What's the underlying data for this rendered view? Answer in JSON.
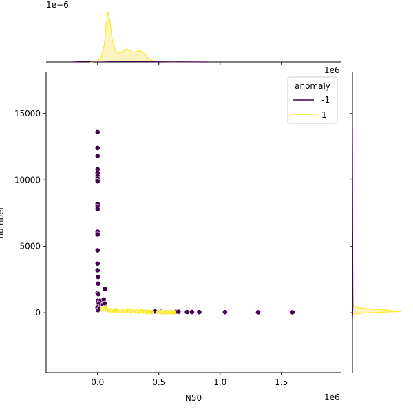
{
  "colors": {
    "anomaly_neg": "#440154",
    "anomaly_pos": "#fde725",
    "anomaly_pos_fill": "#fdf2b8",
    "axis": "#000000",
    "legend_border": "#cccccc"
  },
  "chart_data": {
    "type": "scatter",
    "subtype": "jointplot",
    "xlabel": "N50",
    "ylabel": "number",
    "xlim": [
      -420000,
      1990000
    ],
    "ylim": [
      -4500,
      18100
    ],
    "x_ticks": [
      0,
      500000,
      1000000,
      1500000
    ],
    "x_tick_labels": [
      "0.0",
      "0.5",
      "1.0",
      "1.5"
    ],
    "x_offset_text": "1e6",
    "y_ticks": [
      0,
      5000,
      10000,
      15000
    ],
    "y_tick_labels": [
      "0",
      "5000",
      "10000",
      "15000"
    ],
    "top_marginal_offset_text": "1e−6",
    "right_marginal_offset_text": "1e6",
    "legend": {
      "title": "anomaly",
      "placement": "top-right",
      "entries": [
        {
          "label": "-1",
          "color_key": "anomaly_neg"
        },
        {
          "label": "1",
          "color_key": "anomaly_pos"
        }
      ]
    },
    "series": [
      {
        "name": "-1",
        "color_key": "anomaly_neg",
        "points": [
          [
            0,
            13600
          ],
          [
            0,
            12400
          ],
          [
            0,
            11800
          ],
          [
            0,
            10800
          ],
          [
            0,
            10500
          ],
          [
            0,
            10300
          ],
          [
            0,
            10100
          ],
          [
            0,
            9900
          ],
          [
            0,
            8200
          ],
          [
            0,
            8000
          ],
          [
            0,
            7800
          ],
          [
            0,
            6100
          ],
          [
            0,
            5900
          ],
          [
            0,
            4700
          ],
          [
            0,
            3700
          ],
          [
            0,
            3200
          ],
          [
            4000,
            2700
          ],
          [
            4000,
            2200
          ],
          [
            0,
            1500
          ],
          [
            6000,
            1400
          ],
          [
            60000,
            1800
          ],
          [
            3000,
            900
          ],
          [
            20000,
            900
          ],
          [
            50000,
            1000
          ],
          [
            5000,
            600
          ],
          [
            10000,
            700
          ],
          [
            25000,
            500
          ],
          [
            45000,
            600
          ],
          [
            60000,
            700
          ],
          [
            0,
            400
          ],
          [
            3000,
            200
          ],
          [
            20000,
            300
          ],
          [
            70000,
            400
          ],
          [
            350000,
            150
          ],
          [
            470000,
            100
          ],
          [
            520000,
            100
          ],
          [
            640000,
            80
          ],
          [
            660000,
            80
          ],
          [
            730000,
            60
          ],
          [
            770000,
            60
          ],
          [
            830000,
            50
          ],
          [
            1040000,
            50
          ],
          [
            1310000,
            40
          ],
          [
            1590000,
            40
          ]
        ]
      },
      {
        "name": "1",
        "color_key": "anomaly_pos",
        "points": [
          [
            40000,
            300
          ],
          [
            50000,
            250
          ],
          [
            60000,
            300
          ],
          [
            70000,
            350
          ],
          [
            90000,
            200
          ],
          [
            110000,
            180
          ],
          [
            130000,
            150
          ],
          [
            150000,
            200
          ],
          [
            170000,
            120
          ],
          [
            190000,
            100
          ],
          [
            210000,
            150
          ],
          [
            230000,
            120
          ],
          [
            250000,
            180
          ],
          [
            270000,
            100
          ],
          [
            290000,
            150
          ],
          [
            300000,
            120
          ],
          [
            320000,
            100
          ],
          [
            340000,
            80
          ],
          [
            360000,
            120
          ],
          [
            380000,
            90
          ],
          [
            400000,
            60
          ],
          [
            420000,
            80
          ],
          [
            440000,
            60
          ],
          [
            500000,
            60
          ],
          [
            520000,
            50
          ],
          [
            540000,
            40
          ],
          [
            560000,
            60
          ],
          [
            580000,
            40
          ],
          [
            600000,
            50
          ],
          [
            620000,
            30
          ]
        ]
      }
    ],
    "marginal_x": {
      "series": [
        {
          "name": "1",
          "color_key": "anomaly_pos",
          "density": [
            [
              -60000,
              0.0
            ],
            [
              0,
              0.02
            ],
            [
              30000,
              0.1
            ],
            [
              55000,
              0.35
            ],
            [
              70000,
              0.75
            ],
            [
              85000,
              1.0
            ],
            [
              100000,
              0.85
            ],
            [
              120000,
              0.45
            ],
            [
              150000,
              0.22
            ],
            [
              175000,
              0.18
            ],
            [
              200000,
              0.2
            ],
            [
              230000,
              0.26
            ],
            [
              260000,
              0.24
            ],
            [
              290000,
              0.2
            ],
            [
              320000,
              0.21
            ],
            [
              350000,
              0.23
            ],
            [
              380000,
              0.18
            ],
            [
              410000,
              0.08
            ],
            [
              450000,
              0.03
            ],
            [
              520000,
              0.01
            ],
            [
              650000,
              0.0
            ]
          ]
        },
        {
          "name": "-1",
          "color_key": "anomaly_neg",
          "density": [
            [
              -200000,
              0.0
            ],
            [
              0,
              0.02
            ],
            [
              100000,
              0.01
            ],
            [
              400000,
              0.005
            ],
            [
              900000,
              0.0
            ]
          ]
        }
      ]
    },
    "marginal_y": {
      "series": [
        {
          "name": "1",
          "color_key": "anomaly_pos",
          "density": [
            [
              -100,
              0.0
            ],
            [
              0,
              0.3
            ],
            [
              100,
              1.0
            ],
            [
              200,
              0.7
            ],
            [
              300,
              0.35
            ],
            [
              400,
              0.1
            ],
            [
              600,
              0.0
            ]
          ]
        },
        {
          "name": "-1",
          "color_key": "anomaly_neg",
          "density": [
            [
              -500,
              0.0
            ],
            [
              500,
              0.01
            ],
            [
              5000,
              0.005
            ],
            [
              14000,
              0.0
            ]
          ]
        }
      ]
    }
  }
}
